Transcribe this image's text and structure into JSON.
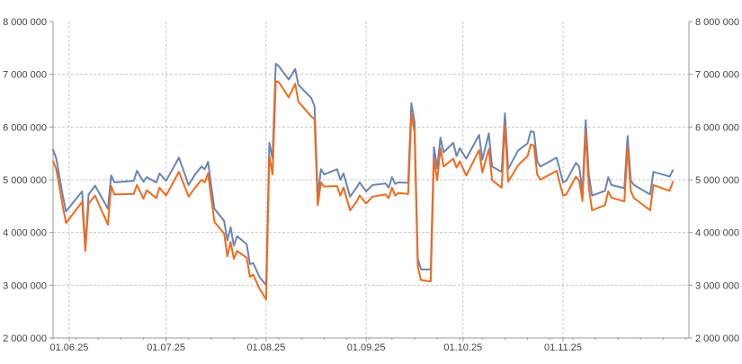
{
  "chart_data": {
    "type": "line",
    "title": "",
    "xlabel": "",
    "ylabel": "",
    "ylim": [
      2000000,
      8000000
    ],
    "y_ticks": [
      2000000,
      3000000,
      4000000,
      5000000,
      6000000,
      7000000,
      8000000
    ],
    "y_tick_labels": [
      "2 000 000",
      "3 000 000",
      "4 000 000",
      "5 000 000",
      "6 000 000",
      "7 000 000",
      "8 000 000"
    ],
    "secondary_y_axis": true,
    "x_range": [
      "2025-05-27",
      "2025-12-10"
    ],
    "x_ticks": [
      "2025-06-01",
      "2025-07-01",
      "2025-08-01",
      "2025-09-01",
      "2025-10-01",
      "2025-11-01"
    ],
    "x_tick_labels": [
      "01.06.25",
      "01.07.25",
      "01.08.25",
      "01.09.25",
      "01.10.25",
      "01.11.25"
    ],
    "grid": true,
    "legend": "none",
    "colors": {
      "series1": "#6b84b8",
      "series2": "#f06a1d",
      "grid": "#c8c8c8",
      "axis": "#9a9a9a"
    },
    "series": [
      {
        "color": "#6b84b8",
        "points": [
          [
            "2025-05-27",
            5570000
          ],
          [
            "2025-05-28",
            5400000
          ],
          [
            "2025-05-30",
            4700000
          ],
          [
            "2025-05-31",
            4400000
          ],
          [
            "2025-06-05",
            4780000
          ],
          [
            "2025-06-06",
            3700000
          ],
          [
            "2025-06-07",
            4720000
          ],
          [
            "2025-06-09",
            4890000
          ],
          [
            "2025-06-13",
            4450000
          ],
          [
            "2025-06-14",
            5080000
          ],
          [
            "2025-06-15",
            4950000
          ],
          [
            "2025-06-21",
            4980000
          ],
          [
            "2025-06-22",
            5170000
          ],
          [
            "2025-06-24",
            4960000
          ],
          [
            "2025-06-25",
            5050000
          ],
          [
            "2025-06-28",
            4950000
          ],
          [
            "2025-06-29",
            5120000
          ],
          [
            "2025-07-01",
            4980000
          ],
          [
            "2025-07-05",
            5420000
          ],
          [
            "2025-07-08",
            4900000
          ],
          [
            "2025-07-10",
            5100000
          ],
          [
            "2025-07-12",
            5250000
          ],
          [
            "2025-07-13",
            5200000
          ],
          [
            "2025-07-14",
            5340000
          ],
          [
            "2025-07-15",
            4880000
          ],
          [
            "2025-07-16",
            4450000
          ],
          [
            "2025-07-19",
            4220000
          ],
          [
            "2025-07-20",
            3850000
          ],
          [
            "2025-07-21",
            4100000
          ],
          [
            "2025-07-22",
            3750000
          ],
          [
            "2025-07-23",
            3930000
          ],
          [
            "2025-07-26",
            3780000
          ],
          [
            "2025-07-27",
            3400000
          ],
          [
            "2025-07-28",
            3420000
          ],
          [
            "2025-07-30",
            3150000
          ],
          [
            "2025-08-01",
            3000000
          ],
          [
            "2025-08-02",
            5700000
          ],
          [
            "2025-08-03",
            5400000
          ],
          [
            "2025-08-04",
            7200000
          ],
          [
            "2025-08-05",
            7150000
          ],
          [
            "2025-08-08",
            6900000
          ],
          [
            "2025-08-10",
            7100000
          ],
          [
            "2025-08-11",
            6800000
          ],
          [
            "2025-08-15",
            6550000
          ],
          [
            "2025-08-16",
            6400000
          ],
          [
            "2025-08-17",
            4700000
          ],
          [
            "2025-08-18",
            5200000
          ],
          [
            "2025-08-19",
            5100000
          ],
          [
            "2025-08-23",
            5200000
          ],
          [
            "2025-08-24",
            5000000
          ],
          [
            "2025-08-25",
            5120000
          ],
          [
            "2025-08-27",
            4680000
          ],
          [
            "2025-08-29",
            4850000
          ],
          [
            "2025-08-30",
            4950000
          ],
          [
            "2025-09-01",
            4780000
          ],
          [
            "2025-09-03",
            4900000
          ],
          [
            "2025-09-07",
            4930000
          ],
          [
            "2025-09-08",
            4850000
          ],
          [
            "2025-09-09",
            5050000
          ],
          [
            "2025-09-10",
            4920000
          ],
          [
            "2025-09-11",
            4950000
          ],
          [
            "2025-09-14",
            4940000
          ],
          [
            "2025-09-15",
            6450000
          ],
          [
            "2025-09-16",
            6100000
          ],
          [
            "2025-09-17",
            3500000
          ],
          [
            "2025-09-18",
            3300000
          ],
          [
            "2025-09-21",
            3300000
          ],
          [
            "2025-09-22",
            5620000
          ],
          [
            "2025-09-23",
            5220000
          ],
          [
            "2025-09-24",
            5800000
          ],
          [
            "2025-09-25",
            5520000
          ],
          [
            "2025-09-28",
            5700000
          ],
          [
            "2025-09-29",
            5450000
          ],
          [
            "2025-09-30",
            5600000
          ],
          [
            "2025-10-02",
            5400000
          ],
          [
            "2025-10-06",
            5850000
          ],
          [
            "2025-10-07",
            5380000
          ],
          [
            "2025-10-09",
            5880000
          ],
          [
            "2025-10-10",
            5250000
          ],
          [
            "2025-10-13",
            5150000
          ],
          [
            "2025-10-14",
            6260000
          ],
          [
            "2025-10-15",
            5200000
          ],
          [
            "2025-10-18",
            5550000
          ],
          [
            "2025-10-21",
            5690000
          ],
          [
            "2025-10-22",
            5920000
          ],
          [
            "2025-10-23",
            5900000
          ],
          [
            "2025-10-24",
            5350000
          ],
          [
            "2025-10-25",
            5250000
          ],
          [
            "2025-10-30",
            5420000
          ],
          [
            "2025-11-01",
            4950000
          ],
          [
            "2025-11-02",
            4980000
          ],
          [
            "2025-11-05",
            5320000
          ],
          [
            "2025-11-06",
            5250000
          ],
          [
            "2025-11-07",
            4760000
          ],
          [
            "2025-11-08",
            6130000
          ],
          [
            "2025-11-09",
            5100000
          ],
          [
            "2025-11-10",
            4700000
          ],
          [
            "2025-11-14",
            4790000
          ],
          [
            "2025-11-15",
            5050000
          ],
          [
            "2025-11-16",
            4900000
          ],
          [
            "2025-11-20",
            4840000
          ],
          [
            "2025-11-21",
            5830000
          ],
          [
            "2025-11-22",
            4980000
          ],
          [
            "2025-11-23",
            4900000
          ],
          [
            "2025-11-28",
            4720000
          ],
          [
            "2025-11-29",
            5150000
          ],
          [
            "2025-12-03",
            5080000
          ],
          [
            "2025-12-04",
            5060000
          ],
          [
            "2025-12-05",
            5180000
          ]
        ]
      },
      {
        "color": "#f06a1d",
        "points": [
          [
            "2025-05-27",
            5350000
          ],
          [
            "2025-05-28",
            5200000
          ],
          [
            "2025-05-30",
            4500000
          ],
          [
            "2025-05-31",
            4180000
          ],
          [
            "2025-06-05",
            4580000
          ],
          [
            "2025-06-06",
            3650000
          ],
          [
            "2025-06-07",
            4550000
          ],
          [
            "2025-06-09",
            4700000
          ],
          [
            "2025-06-13",
            4150000
          ],
          [
            "2025-06-14",
            4880000
          ],
          [
            "2025-06-15",
            4720000
          ],
          [
            "2025-06-21",
            4730000
          ],
          [
            "2025-06-22",
            4900000
          ],
          [
            "2025-06-24",
            4640000
          ],
          [
            "2025-06-25",
            4800000
          ],
          [
            "2025-06-28",
            4650000
          ],
          [
            "2025-06-29",
            4850000
          ],
          [
            "2025-07-01",
            4700000
          ],
          [
            "2025-07-05",
            5150000
          ],
          [
            "2025-07-08",
            4680000
          ],
          [
            "2025-07-10",
            4850000
          ],
          [
            "2025-07-12",
            5000000
          ],
          [
            "2025-07-13",
            4950000
          ],
          [
            "2025-07-14",
            5120000
          ],
          [
            "2025-07-15",
            4660000
          ],
          [
            "2025-07-16",
            4200000
          ],
          [
            "2025-07-19",
            3980000
          ],
          [
            "2025-07-20",
            3550000
          ],
          [
            "2025-07-21",
            3820000
          ],
          [
            "2025-07-22",
            3500000
          ],
          [
            "2025-07-23",
            3650000
          ],
          [
            "2025-07-26",
            3520000
          ],
          [
            "2025-07-27",
            3160000
          ],
          [
            "2025-07-28",
            3200000
          ],
          [
            "2025-07-30",
            2930000
          ],
          [
            "2025-08-01",
            2730000
          ],
          [
            "2025-08-02",
            5450000
          ],
          [
            "2025-08-03",
            5100000
          ],
          [
            "2025-08-04",
            6870000
          ],
          [
            "2025-08-05",
            6850000
          ],
          [
            "2025-08-08",
            6560000
          ],
          [
            "2025-08-10",
            6820000
          ],
          [
            "2025-08-11",
            6480000
          ],
          [
            "2025-08-15",
            6200000
          ],
          [
            "2025-08-16",
            6150000
          ],
          [
            "2025-08-17",
            4520000
          ],
          [
            "2025-08-18",
            4950000
          ],
          [
            "2025-08-19",
            4870000
          ],
          [
            "2025-08-23",
            4880000
          ],
          [
            "2025-08-24",
            4700000
          ],
          [
            "2025-08-25",
            4850000
          ],
          [
            "2025-08-27",
            4420000
          ],
          [
            "2025-08-29",
            4580000
          ],
          [
            "2025-08-30",
            4700000
          ],
          [
            "2025-09-01",
            4550000
          ],
          [
            "2025-09-03",
            4680000
          ],
          [
            "2025-09-07",
            4720000
          ],
          [
            "2025-09-08",
            4650000
          ],
          [
            "2025-09-09",
            4850000
          ],
          [
            "2025-09-10",
            4700000
          ],
          [
            "2025-09-11",
            4750000
          ],
          [
            "2025-09-14",
            4730000
          ],
          [
            "2025-09-15",
            6250000
          ],
          [
            "2025-09-16",
            5900000
          ],
          [
            "2025-09-17",
            3350000
          ],
          [
            "2025-09-18",
            3100000
          ],
          [
            "2025-09-21",
            3070000
          ],
          [
            "2025-09-22",
            5400000
          ],
          [
            "2025-09-23",
            4990000
          ],
          [
            "2025-09-24",
            5600000
          ],
          [
            "2025-09-25",
            5250000
          ],
          [
            "2025-09-28",
            5400000
          ],
          [
            "2025-09-29",
            5230000
          ],
          [
            "2025-09-30",
            5350000
          ],
          [
            "2025-10-02",
            5080000
          ],
          [
            "2025-10-06",
            5560000
          ],
          [
            "2025-10-07",
            5140000
          ],
          [
            "2025-10-09",
            5580000
          ],
          [
            "2025-10-10",
            4990000
          ],
          [
            "2025-10-13",
            4850000
          ],
          [
            "2025-10-14",
            6040000
          ],
          [
            "2025-10-15",
            4960000
          ],
          [
            "2025-10-18",
            5270000
          ],
          [
            "2025-10-21",
            5450000
          ],
          [
            "2025-10-22",
            5670000
          ],
          [
            "2025-10-23",
            5650000
          ],
          [
            "2025-10-24",
            5100000
          ],
          [
            "2025-10-25",
            5000000
          ],
          [
            "2025-10-30",
            5170000
          ],
          [
            "2025-11-01",
            4700000
          ],
          [
            "2025-11-02",
            4720000
          ],
          [
            "2025-11-05",
            5060000
          ],
          [
            "2025-11-06",
            4980000
          ],
          [
            "2025-11-07",
            4600000
          ],
          [
            "2025-11-08",
            5900000
          ],
          [
            "2025-11-09",
            4850000
          ],
          [
            "2025-11-10",
            4420000
          ],
          [
            "2025-11-14",
            4520000
          ],
          [
            "2025-11-15",
            4780000
          ],
          [
            "2025-11-16",
            4660000
          ],
          [
            "2025-11-20",
            4590000
          ],
          [
            "2025-11-21",
            5620000
          ],
          [
            "2025-11-22",
            4780000
          ],
          [
            "2025-11-23",
            4650000
          ],
          [
            "2025-11-28",
            4420000
          ],
          [
            "2025-11-29",
            4900000
          ],
          [
            "2025-12-03",
            4810000
          ],
          [
            "2025-12-04",
            4790000
          ],
          [
            "2025-12-05",
            4960000
          ]
        ]
      }
    ]
  }
}
